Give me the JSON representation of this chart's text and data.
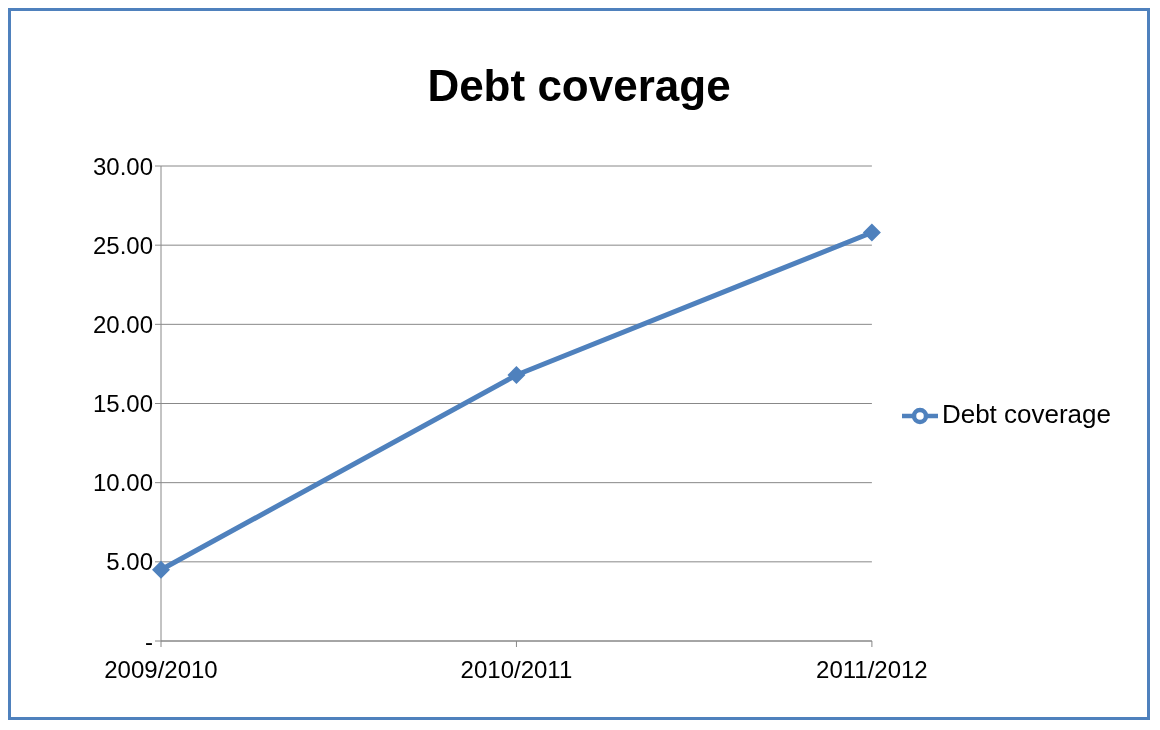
{
  "chart_data": {
    "type": "line",
    "title": "Debt coverage",
    "categories": [
      "2009/2010",
      "2010/2011",
      "2011/2012"
    ],
    "series": [
      {
        "name": "Debt coverage",
        "color": "#4f81bd",
        "values": [
          4.5,
          16.8,
          25.8
        ]
      }
    ],
    "ylim": [
      0,
      30
    ],
    "yticks": [
      {
        "value": 0,
        "label": "-"
      },
      {
        "value": 5,
        "label": "5.00"
      },
      {
        "value": 10,
        "label": "10.00"
      },
      {
        "value": 15,
        "label": "15.00"
      },
      {
        "value": 20,
        "label": "20.00"
      },
      {
        "value": 25,
        "label": "25.00"
      },
      {
        "value": 30,
        "label": "30.00"
      }
    ],
    "grid": "y",
    "legend": "right",
    "marker": "diamond",
    "line_style": "solid"
  }
}
